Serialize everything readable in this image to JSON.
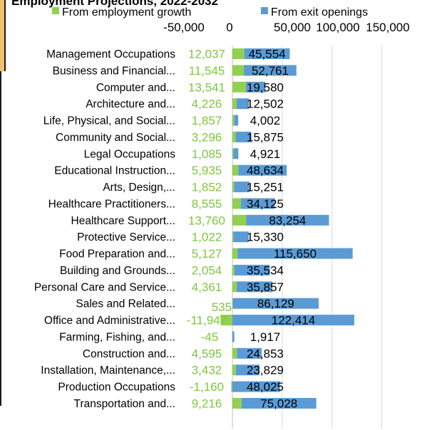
{
  "chart_data": {
    "type": "bar",
    "orientation": "horizontal",
    "stacked": true,
    "title": "Employment Projections, 2022-2032",
    "legend": {
      "position": "top"
    },
    "xlim": [
      -50000,
      150000
    ],
    "x_ticks": [
      "-50,000",
      "0",
      "50,000",
      "100,000",
      "150,000"
    ],
    "x_tick_values": [
      -50000,
      0,
      50000,
      100000,
      150000
    ],
    "grid": true,
    "categories": [
      "Management Occupations",
      "Business and Financial...",
      "Computer and...",
      "Architecture and...",
      "Life, Physical, and Social...",
      "Community and Social...",
      "Legal Occupations",
      "Educational Instruction...",
      "Arts, Design,...",
      "Healthcare Practitioners...",
      "Healthcare Support...",
      "Protective Service...",
      "Food Preparation and...",
      "Building and Grounds...",
      "Personal Care and Service...",
      "Sales and Related...",
      "Office and Administrative...",
      "Farming, Fishing, and...",
      "Construction and...",
      "Installation, Maintenance,...",
      "Production Occupations",
      "Transportation and..."
    ],
    "series": [
      {
        "name": "From employment growth",
        "color": "#92d050",
        "values": [
          12037,
          11545,
          13541,
          4226,
          1857,
          3296,
          1085,
          5935,
          1852,
          8555,
          13760,
          1022,
          5127,
          2054,
          4361,
          535,
          -11947,
          -45,
          4595,
          3432,
          -1160,
          9216
        ],
        "labels": [
          "12,037",
          "11,545",
          "13,541",
          "4,226",
          "1,857",
          "3,296",
          "1,085",
          "5,935",
          "1,852",
          "8,555",
          "13,760",
          "1,022",
          "5,127",
          "2,054",
          "4,361",
          "535",
          "-11,947",
          "-45",
          "4,595",
          "3,432",
          "-1,160",
          "9,216"
        ]
      },
      {
        "name": "From exit openings",
        "color": "#5b9bd5",
        "values": [
          45554,
          52761,
          19580,
          12502,
          4002,
          15875,
          4921,
          48634,
          15251,
          34125,
          83254,
          15330,
          115650,
          35534,
          35857,
          86129,
          122414,
          1917,
          24853,
          23829,
          48025,
          75028
        ],
        "labels": [
          "45,554",
          "52,761",
          "19,580",
          "12,502",
          "4,002",
          "15,875",
          "4,921",
          "48,634",
          "15,251",
          "34,125",
          "83,254",
          "15,330",
          "115,650",
          "35,534",
          "35,857",
          "86,129",
          "122,414",
          "1,917",
          "24,853",
          "23,829",
          "48,025",
          "75,028"
        ]
      }
    ]
  }
}
